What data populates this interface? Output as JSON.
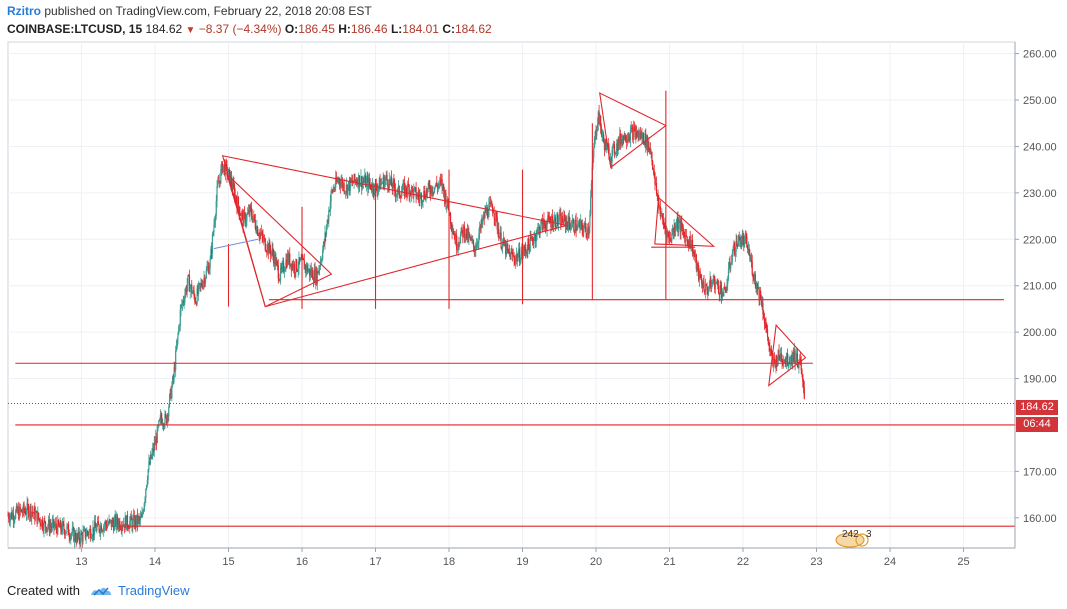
{
  "header": {
    "author": "Rzitro",
    "published_text": "published on TradingView.com, February 22, 2018 20:08 EST",
    "symbol": "COINBASE:LTCUSD, 15",
    "last_price": "184.62",
    "change": "−8.37 (−4.34%)",
    "open_label": "O:",
    "open": "186.45",
    "high_label": "H:",
    "high": "186.46",
    "low_label": "L:",
    "low": "184.01",
    "close_label": "C:",
    "close": "184.62"
  },
  "price_tag": {
    "price": "184.62",
    "countdown": "06:44"
  },
  "events_badge": {
    "count_a": "242",
    "count_b": "3"
  },
  "footer": {
    "created_with": "Created with",
    "brand": "TradingView"
  },
  "colors": {
    "drawing": "#e0262b",
    "up_candle": "#3a9b8f",
    "down_candle": "#e0262b",
    "axis_text": "#555555",
    "grid": "#eef1f5",
    "brand": "#2a7ad8"
  },
  "chart_data": {
    "type": "candlestick",
    "symbol": "COINBASE:LTCUSD",
    "interval": "15",
    "x_ticks": [
      "13",
      "14",
      "15",
      "16",
      "17",
      "18",
      "19",
      "20",
      "21",
      "22",
      "23",
      "24",
      "25"
    ],
    "y_ticks": [
      "160.00",
      "170.00",
      "180.00",
      "190.00",
      "200.00",
      "210.00",
      "220.00",
      "230.00",
      "240.00",
      "250.00",
      "260.00"
    ],
    "ylim": [
      153.5,
      262.5
    ],
    "xlim": [
      12.0,
      25.7
    ],
    "last_price": 184.62,
    "price_path": [
      [
        12.0,
        160.5
      ],
      [
        12.3,
        161.8
      ],
      [
        12.5,
        158.5
      ],
      [
        12.8,
        157.5
      ],
      [
        12.95,
        155.5
      ],
      [
        13.1,
        157.0
      ],
      [
        13.3,
        158.5
      ],
      [
        13.5,
        159.0
      ],
      [
        13.7,
        159.0
      ],
      [
        13.82,
        159.5
      ],
      [
        13.9,
        170.0
      ],
      [
        14.0,
        176.0
      ],
      [
        14.08,
        181.5
      ],
      [
        14.15,
        181.0
      ],
      [
        14.25,
        190.0
      ],
      [
        14.35,
        205.0
      ],
      [
        14.45,
        211.0
      ],
      [
        14.55,
        207.0
      ],
      [
        14.65,
        211.0
      ],
      [
        14.75,
        215.0
      ],
      [
        14.85,
        231.0
      ],
      [
        14.92,
        236.0
      ],
      [
        15.0,
        234.0
      ],
      [
        15.1,
        229.0
      ],
      [
        15.2,
        224.0
      ],
      [
        15.3,
        226.0
      ],
      [
        15.4,
        222.0
      ],
      [
        15.5,
        219.0
      ],
      [
        15.6,
        217.0
      ],
      [
        15.7,
        212.0
      ],
      [
        15.8,
        216.0
      ],
      [
        15.9,
        214.0
      ],
      [
        16.0,
        215.0
      ],
      [
        16.1,
        213.0
      ],
      [
        16.2,
        212.0
      ],
      [
        16.3,
        219.0
      ],
      [
        16.4,
        230.0
      ],
      [
        16.5,
        233.0
      ],
      [
        16.6,
        231.0
      ],
      [
        16.75,
        233.0
      ],
      [
        16.9,
        232.0
      ],
      [
        17.0,
        231.0
      ],
      [
        17.15,
        233.0
      ],
      [
        17.3,
        230.0
      ],
      [
        17.45,
        231.0
      ],
      [
        17.6,
        229.0
      ],
      [
        17.75,
        231.0
      ],
      [
        17.9,
        232.0
      ],
      [
        18.0,
        226.0
      ],
      [
        18.1,
        219.0
      ],
      [
        18.2,
        222.0
      ],
      [
        18.35,
        218.0
      ],
      [
        18.5,
        226.0
      ],
      [
        18.6,
        227.0
      ],
      [
        18.7,
        220.0
      ],
      [
        18.8,
        217.0
      ],
      [
        18.9,
        216.0
      ],
      [
        19.0,
        217.0
      ],
      [
        19.1,
        219.0
      ],
      [
        19.25,
        223.0
      ],
      [
        19.4,
        224.0
      ],
      [
        19.55,
        224.0
      ],
      [
        19.7,
        223.0
      ],
      [
        19.9,
        222.0
      ],
      [
        19.97,
        240.0
      ],
      [
        20.03,
        247.0
      ],
      [
        20.1,
        241.0
      ],
      [
        20.2,
        238.0
      ],
      [
        20.35,
        242.0
      ],
      [
        20.5,
        243.0
      ],
      [
        20.65,
        242.0
      ],
      [
        20.75,
        239.0
      ],
      [
        20.8,
        232.0
      ],
      [
        20.9,
        224.0
      ],
      [
        21.0,
        220.0
      ],
      [
        21.1,
        224.0
      ],
      [
        21.2,
        221.0
      ],
      [
        21.3,
        219.0
      ],
      [
        21.4,
        212.0
      ],
      [
        21.5,
        209.0
      ],
      [
        21.6,
        211.0
      ],
      [
        21.75,
        208.0
      ],
      [
        21.85,
        217.0
      ],
      [
        21.95,
        220.0
      ],
      [
        22.05,
        219.0
      ],
      [
        22.15,
        212.0
      ],
      [
        22.25,
        207.0
      ],
      [
        22.32,
        200.0
      ],
      [
        22.4,
        193.0
      ],
      [
        22.5,
        195.0
      ],
      [
        22.6,
        194.0
      ],
      [
        22.7,
        195.0
      ],
      [
        22.78,
        193.0
      ],
      [
        22.84,
        184.62
      ]
    ],
    "drawings": {
      "horizontal_lines": [
        {
          "price": 158.2,
          "from_x": 13.6,
          "to_x": 25.7
        },
        {
          "price": 180.0,
          "from_x": 12.1,
          "to_x": 25.7
        },
        {
          "price": 193.3,
          "from_x": 12.1,
          "to_x": 22.95
        },
        {
          "price": 207.0,
          "from_x": 15.55,
          "to_x": 25.55
        },
        {
          "price": 218.3,
          "from_x": 20.75,
          "to_x": 21.35
        }
      ],
      "vertical_lines": [
        {
          "x": 15.0,
          "from": 205.5,
          "to": 219.0
        },
        {
          "x": 16.0,
          "from": 205.0,
          "to": 227.0
        },
        {
          "x": 17.0,
          "from": 205.0,
          "to": 233.0
        },
        {
          "x": 18.0,
          "from": 205.0,
          "to": 235.0
        },
        {
          "x": 19.0,
          "from": 206.0,
          "to": 235.0
        },
        {
          "x": 19.95,
          "from": 207.0,
          "to": 245.0
        },
        {
          "x": 20.95,
          "from": 207.0,
          "to": 252.0
        }
      ],
      "triangles": [
        [
          [
            14.92,
            238.0
          ],
          [
            19.6,
            223.0
          ],
          [
            15.5,
            205.5
          ]
        ],
        [
          [
            14.98,
            234.0
          ],
          [
            16.4,
            212.5
          ],
          [
            15.5,
            205.5
          ]
        ],
        [
          [
            20.05,
            251.5
          ],
          [
            20.95,
            244.5
          ],
          [
            20.2,
            235.5
          ]
        ],
        [
          [
            20.85,
            229.0
          ],
          [
            21.6,
            218.5
          ],
          [
            20.8,
            219.0
          ]
        ],
        [
          [
            22.45,
            201.5
          ],
          [
            22.85,
            194.5
          ],
          [
            22.35,
            188.5
          ]
        ]
      ],
      "minor_line": [
        [
          14.8,
          218.0
        ],
        [
          15.4,
          220.0
        ]
      ]
    }
  }
}
